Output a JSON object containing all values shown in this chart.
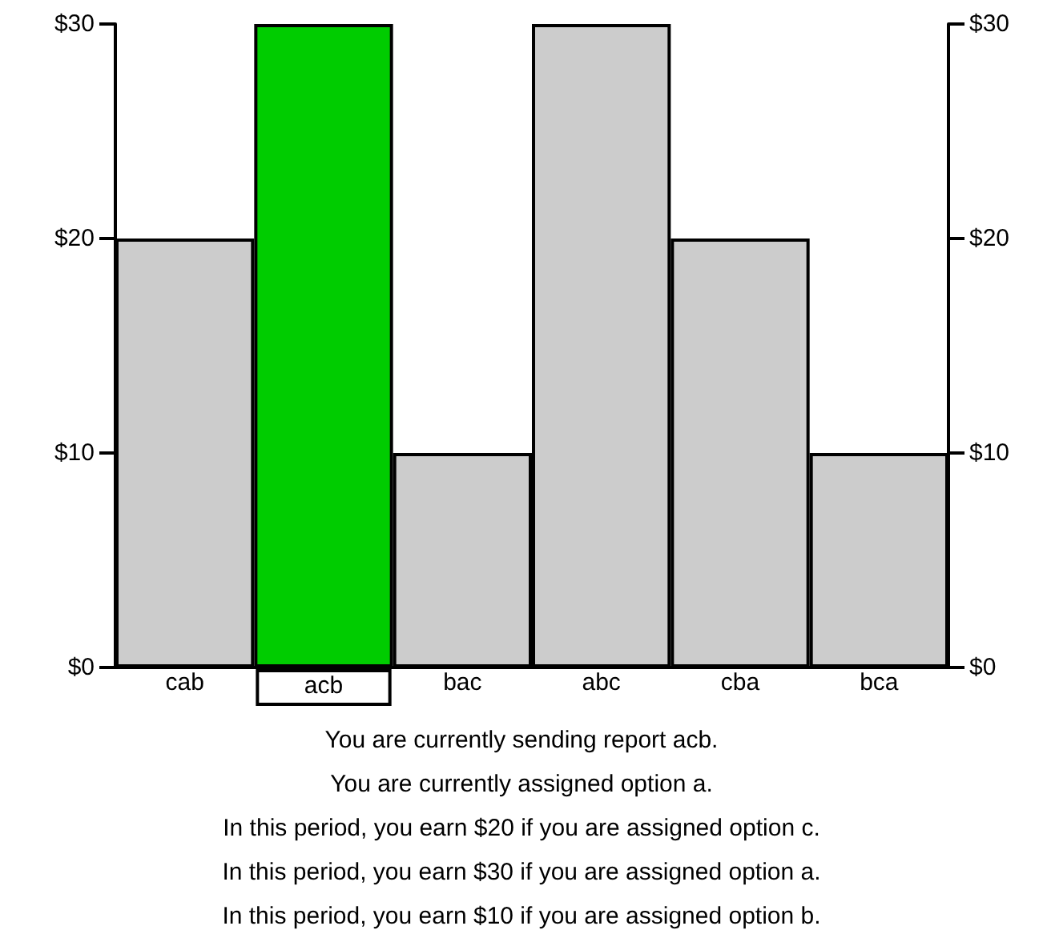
{
  "chart_data": {
    "type": "bar",
    "categories": [
      "cab",
      "acb",
      "bac",
      "abc",
      "cba",
      "bca"
    ],
    "values": [
      20,
      30,
      10,
      30,
      20,
      10
    ],
    "colors": [
      "#cccccc",
      "#00cc00",
      "#cccccc",
      "#cccccc",
      "#cccccc",
      "#cccccc"
    ],
    "ylim": [
      0,
      30
    ],
    "yticks": [
      {
        "value": 0,
        "label": "$0"
      },
      {
        "value": 10,
        "label": "$10"
      },
      {
        "value": 20,
        "label": "$20"
      },
      {
        "value": 30,
        "label": "$30"
      }
    ],
    "y2lim": [
      0,
      30
    ],
    "y2ticks": [
      {
        "value": 0,
        "label": "$0"
      },
      {
        "value": 10,
        "label": "$10"
      },
      {
        "value": 20,
        "label": "$20"
      },
      {
        "value": 30,
        "label": "$30"
      }
    ],
    "grid": false,
    "annotations": [
      "You are currently sending report acb.",
      "You are currently assigned option a.",
      "In this period, you earn $20 if you are assigned option c.",
      "In this period, you earn $30 if you are assigned option a.",
      "In this period, you earn $10 if you are assigned option b."
    ]
  }
}
